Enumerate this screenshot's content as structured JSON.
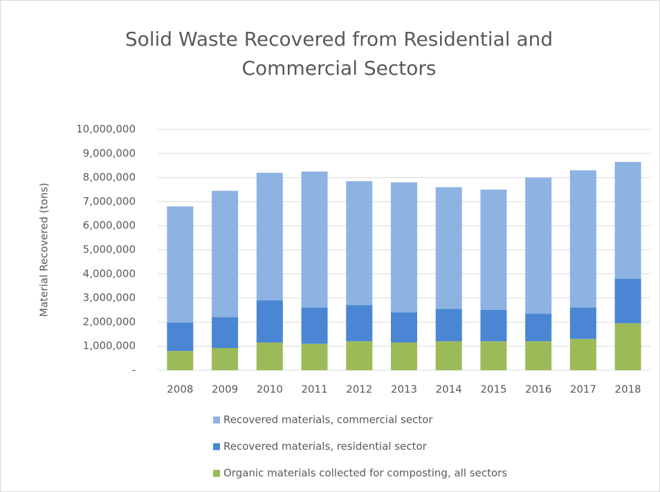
{
  "chart_data": {
    "type": "stacked_bar",
    "title": [
      "Solid Waste Recovered from Residential and",
      "Commercial Sectors"
    ],
    "y_label": "Material Recovered (tons)",
    "categories": [
      "2008",
      "2009",
      "2010",
      "2011",
      "2012",
      "2013",
      "2014",
      "2015",
      "2016",
      "2017",
      "2018"
    ],
    "series": [
      {
        "name": "Organic materials collected for composting, all sectors",
        "color": "#9bbb59",
        "values": [
          800000,
          920000,
          1150000,
          1100000,
          1200000,
          1150000,
          1200000,
          1200000,
          1200000,
          1300000,
          1950000
        ]
      },
      {
        "name": "Recovered materials, residential sector",
        "color": "#4a86d4",
        "values": [
          1180000,
          1280000,
          1750000,
          1500000,
          1500000,
          1250000,
          1350000,
          1300000,
          1150000,
          1300000,
          1850000
        ]
      },
      {
        "name": "Recovered materials, commercial sector",
        "color": "#8db3e2",
        "values": [
          4820000,
          5250000,
          5300000,
          5650000,
          5150000,
          5400000,
          5050000,
          5000000,
          5650000,
          5700000,
          4850000
        ]
      }
    ],
    "ylim": [
      0,
      10000000
    ],
    "yticks": [
      {
        "value": 0,
        "label": "-"
      },
      {
        "value": 1000000,
        "label": "1,000,000"
      },
      {
        "value": 2000000,
        "label": "2,000,000"
      },
      {
        "value": 3000000,
        "label": "3,000,000"
      },
      {
        "value": 4000000,
        "label": "4,000,000"
      },
      {
        "value": 5000000,
        "label": "5,000,000"
      },
      {
        "value": 6000000,
        "label": "6,000,000"
      },
      {
        "value": 7000000,
        "label": "7,000,000"
      },
      {
        "value": 8000000,
        "label": "8,000,000"
      },
      {
        "value": 9000000,
        "label": "9,000,000"
      },
      {
        "value": 10000000,
        "label": "10,000,000"
      }
    ],
    "grid": true,
    "legend": "bottom"
  }
}
